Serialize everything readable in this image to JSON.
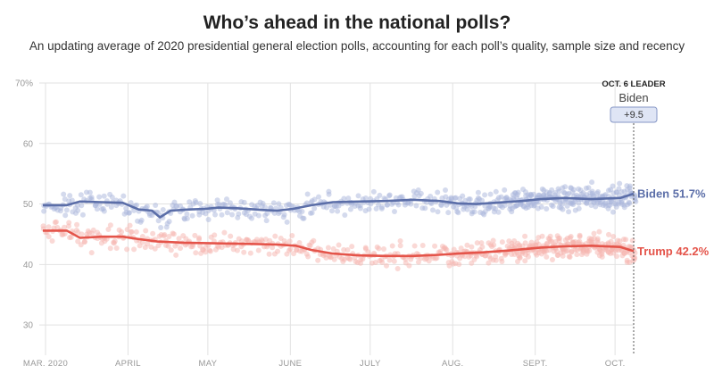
{
  "header": {
    "title": "Who’s ahead in the national polls?",
    "subtitle": "An updating average of 2020 presidential general election polls, accounting for each poll’s quality, sample size and recency"
  },
  "leader": {
    "heading": "OCT. 6 LEADER",
    "name": "Biden",
    "margin": "+9.5"
  },
  "chart_data": {
    "type": "line",
    "title": "Who’s ahead in the national polls?",
    "ylim": [
      25,
      70
    ],
    "y_ticks": [
      30,
      40,
      50,
      60,
      70
    ],
    "y_tick_labels": [
      "30",
      "40",
      "50",
      "60",
      "70%"
    ],
    "x_ticks": [
      "MAR. 2020",
      "APRIL",
      "MAY",
      "JUNE",
      "JULY",
      "AUG.",
      "SEPT.",
      "OCT."
    ],
    "x_tick_days": [
      1,
      32,
      62,
      93,
      123,
      154,
      185,
      215
    ],
    "x_start": "2020-02-27",
    "x_end": "2020-10-06",
    "grid": true,
    "legend": "end-of-line labels",
    "series": [
      {
        "name": "Biden",
        "end_label": "Biden 51.7%",
        "color": "#5b6ea8",
        "dot_color": "#aab6dc",
        "x": [
          "2020-02-27",
          "2020-03-07",
          "2020-03-12",
          "2020-03-20",
          "2020-03-28",
          "2020-04-03",
          "2020-04-08",
          "2020-04-11",
          "2020-04-15",
          "2020-04-22",
          "2020-04-28",
          "2020-05-03",
          "2020-05-10",
          "2020-05-20",
          "2020-05-25",
          "2020-05-31",
          "2020-06-07",
          "2020-06-15",
          "2020-06-25",
          "2020-07-05",
          "2020-07-15",
          "2020-07-25",
          "2020-08-01",
          "2020-08-08",
          "2020-08-15",
          "2020-08-25",
          "2020-09-01",
          "2020-09-10",
          "2020-09-20",
          "2020-10-01",
          "2020-10-06"
        ],
        "values": [
          49.8,
          49.8,
          50.4,
          50.3,
          50.2,
          49.1,
          48.9,
          47.8,
          48.9,
          49.1,
          49.2,
          49.4,
          49.3,
          49.0,
          48.9,
          49.2,
          49.8,
          50.3,
          50.4,
          50.5,
          50.7,
          50.5,
          50.1,
          50.0,
          50.2,
          50.5,
          50.8,
          51.0,
          50.8,
          51.0,
          51.7
        ]
      },
      {
        "name": "Trump",
        "end_label": "Trump 42.2%",
        "color": "#e4544a",
        "dot_color": "#f5b4ae",
        "x": [
          "2020-02-27",
          "2020-03-07",
          "2020-03-12",
          "2020-03-20",
          "2020-03-28",
          "2020-04-03",
          "2020-04-10",
          "2020-04-20",
          "2020-05-01",
          "2020-05-15",
          "2020-05-25",
          "2020-06-01",
          "2020-06-07",
          "2020-06-15",
          "2020-06-25",
          "2020-07-05",
          "2020-07-15",
          "2020-07-25",
          "2020-08-01",
          "2020-08-10",
          "2020-08-20",
          "2020-09-01",
          "2020-09-10",
          "2020-09-20",
          "2020-10-01",
          "2020-10-06"
        ],
        "values": [
          45.6,
          45.6,
          44.4,
          44.6,
          44.6,
          44.2,
          43.8,
          43.6,
          43.5,
          43.4,
          43.3,
          43.1,
          42.4,
          41.8,
          41.5,
          41.4,
          41.4,
          41.6,
          41.8,
          42.0,
          42.3,
          42.8,
          43.0,
          43.1,
          42.9,
          42.2
        ]
      }
    ]
  }
}
